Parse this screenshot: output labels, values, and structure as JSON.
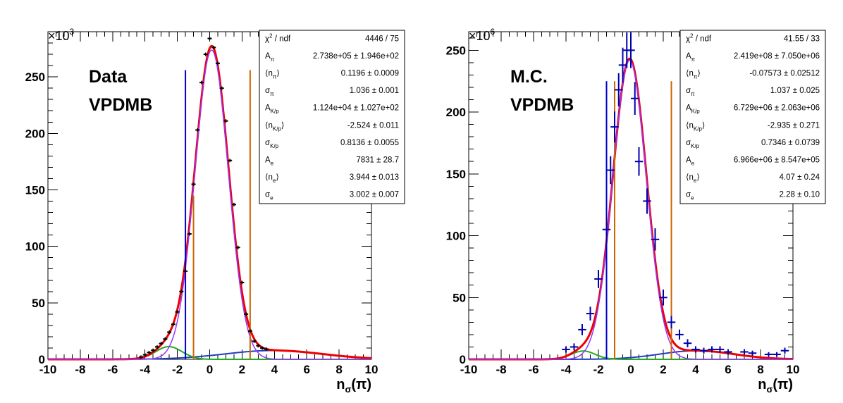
{
  "chart_data": [
    {
      "type": "scatter",
      "xlabel": "n",
      "xlabel_sub": "σ",
      "xlabel_arg": "(π)",
      "xlim": [
        -10,
        10
      ],
      "ylim": [
        0,
        290
      ],
      "y_multiplier": "×10",
      "y_multiplier_exp": "3",
      "x_ticks": [
        -10,
        -8,
        -6,
        -4,
        -2,
        0,
        2,
        4,
        6,
        8,
        10
      ],
      "y_ticks": [
        0,
        50,
        100,
        150,
        200,
        250
      ],
      "labels": [
        "Data",
        "VPDMB"
      ],
      "grid": false,
      "vertical_lines": [
        {
          "x": -1.5,
          "color": "#0000cc",
          "top": 256
        },
        {
          "x": -1.0,
          "color": "#cc6600",
          "top": 145
        },
        {
          "x": 2.5,
          "color": "#cc6600",
          "top": 256
        }
      ],
      "stats": [
        {
          "name": "χ",
          "sup": "2",
          "name_rest": " / ndf",
          "value": "4446 / 75"
        },
        {
          "name": "A",
          "sub": "π",
          "value": "2.738e+05 ± 1.946e+02"
        },
        {
          "name": "⟨n",
          "sub": "π",
          "name_rest": "⟩",
          "value": "0.1196 ± 0.0009"
        },
        {
          "name": "σ",
          "sub": "π",
          "value": "1.036 ± 0.001"
        },
        {
          "name": "A",
          "sub": "K/p",
          "value": "1.124e+04 ± 1.027e+02"
        },
        {
          "name": "⟨n",
          "sub": "K/p",
          "name_rest": "⟩",
          "value": "-2.524 ± 0.011"
        },
        {
          "name": "σ",
          "sub": "K/p",
          "value": "0.8136 ± 0.0055"
        },
        {
          "name": "A",
          "sub": "e",
          "value": "7831 ± 28.7"
        },
        {
          "name": "⟨n",
          "sub": "e",
          "name_rest": "⟩",
          "value": "3.944 ± 0.013"
        },
        {
          "name": "σ",
          "sub": "e",
          "value": "3.002 ± 0.007"
        }
      ],
      "fit": {
        "scale": 0.001,
        "pi": {
          "A": 273800,
          "mu": 0.1196,
          "sigma": 1.036
        },
        "kp": {
          "A": 11240,
          "mu": -2.524,
          "sigma": 0.8136
        },
        "e": {
          "A": 7831,
          "mu": 3.944,
          "sigma": 3.002
        }
      },
      "points": {
        "x": [
          -4.25,
          -4.0,
          -3.75,
          -3.5,
          -3.25,
          -3.0,
          -2.75,
          -2.5,
          -2.25,
          -2.0,
          -1.75,
          -1.5,
          -1.25,
          -1.0,
          -0.75,
          -0.5,
          -0.25,
          0.0,
          0.25,
          0.5,
          0.75,
          1.0,
          1.25,
          1.5,
          1.75,
          2.0,
          2.25,
          2.5,
          2.75,
          3.0,
          3.25,
          3.5
        ],
        "y": [
          2,
          4,
          6,
          8,
          11,
          14,
          18,
          24,
          31,
          42,
          60,
          78,
          111,
          155,
          203,
          245,
          270,
          284,
          276,
          262,
          240,
          211,
          176,
          137,
          99,
          68,
          40,
          25,
          16,
          12,
          10,
          9
        ]
      },
      "point_errors": "small",
      "point_color": "#000000"
    },
    {
      "type": "scatter",
      "xlabel": "n",
      "xlabel_sub": "σ",
      "xlabel_arg": "(π)",
      "xlim": [
        -10,
        10
      ],
      "ylim": [
        0,
        265
      ],
      "y_multiplier": "×10",
      "y_multiplier_exp": "6",
      "x_ticks": [
        -10,
        -8,
        -6,
        -4,
        -2,
        0,
        2,
        4,
        6,
        8,
        10
      ],
      "y_ticks": [
        0,
        50,
        100,
        150,
        200,
        250
      ],
      "labels": [
        "M.C.",
        "VPDMB"
      ],
      "grid": false,
      "vertical_lines": [
        {
          "x": -1.5,
          "color": "#0000cc",
          "top": 225
        },
        {
          "x": -1.0,
          "color": "#cc6600",
          "top": 225
        },
        {
          "x": 2.5,
          "color": "#cc6600",
          "top": 225
        }
      ],
      "stats": [
        {
          "name": "χ",
          "sup": "2",
          "name_rest": " / ndf",
          "value": "41.55 / 33"
        },
        {
          "name": "A",
          "sub": "π",
          "value": "2.419e+08 ± 7.050e+06"
        },
        {
          "name": "⟨n",
          "sub": "π",
          "name_rest": "⟩",
          "value": "-0.07573 ± 0.02512"
        },
        {
          "name": "σ",
          "sub": "π",
          "value": "1.037 ± 0.025"
        },
        {
          "name": "A",
          "sub": "K/p",
          "value": "6.729e+06 ± 2.063e+06"
        },
        {
          "name": "⟨n",
          "sub": "K/p",
          "name_rest": "⟩",
          "value": "-2.935 ± 0.271"
        },
        {
          "name": "σ",
          "sub": "K/p",
          "value": "0.7346 ± 0.0739"
        },
        {
          "name": "A",
          "sub": "e",
          "value": "6.966e+06 ± 8.547e+05"
        },
        {
          "name": "⟨n",
          "sub": "e",
          "name_rest": "⟩",
          "value": "4.07 ± 0.24"
        },
        {
          "name": "σ",
          "sub": "e",
          "value": "2.28 ± 0.10"
        }
      ],
      "fit": {
        "scale": 1e-06,
        "pi": {
          "A": 241900000,
          "mu": -0.07573,
          "sigma": 1.037
        },
        "kp": {
          "A": 6729000,
          "mu": -2.935,
          "sigma": 0.7346
        },
        "e": {
          "A": 6966000,
          "mu": 4.07,
          "sigma": 2.28
        }
      },
      "points": {
        "x": [
          -4.0,
          -3.5,
          -3.0,
          -2.5,
          -2.0,
          -1.5,
          -1.25,
          -1.0,
          -0.75,
          -0.5,
          -0.25,
          0.0,
          0.25,
          0.5,
          1.0,
          1.5,
          2.0,
          2.5,
          3.0,
          3.5,
          4.0,
          4.5,
          5.0,
          5.5,
          6.0,
          7.0,
          7.5,
          8.5,
          9.0,
          9.5
        ],
        "y": [
          8,
          10,
          24,
          37,
          65,
          105,
          153,
          188,
          218,
          238,
          250,
          250,
          211,
          160,
          128,
          97,
          50,
          30,
          20,
          13,
          8,
          7,
          8,
          8,
          6,
          6,
          5,
          4,
          4,
          7
        ],
        "xerr": 0.25
      },
      "point_errors": "cross",
      "point_color": "#0000aa"
    }
  ]
}
